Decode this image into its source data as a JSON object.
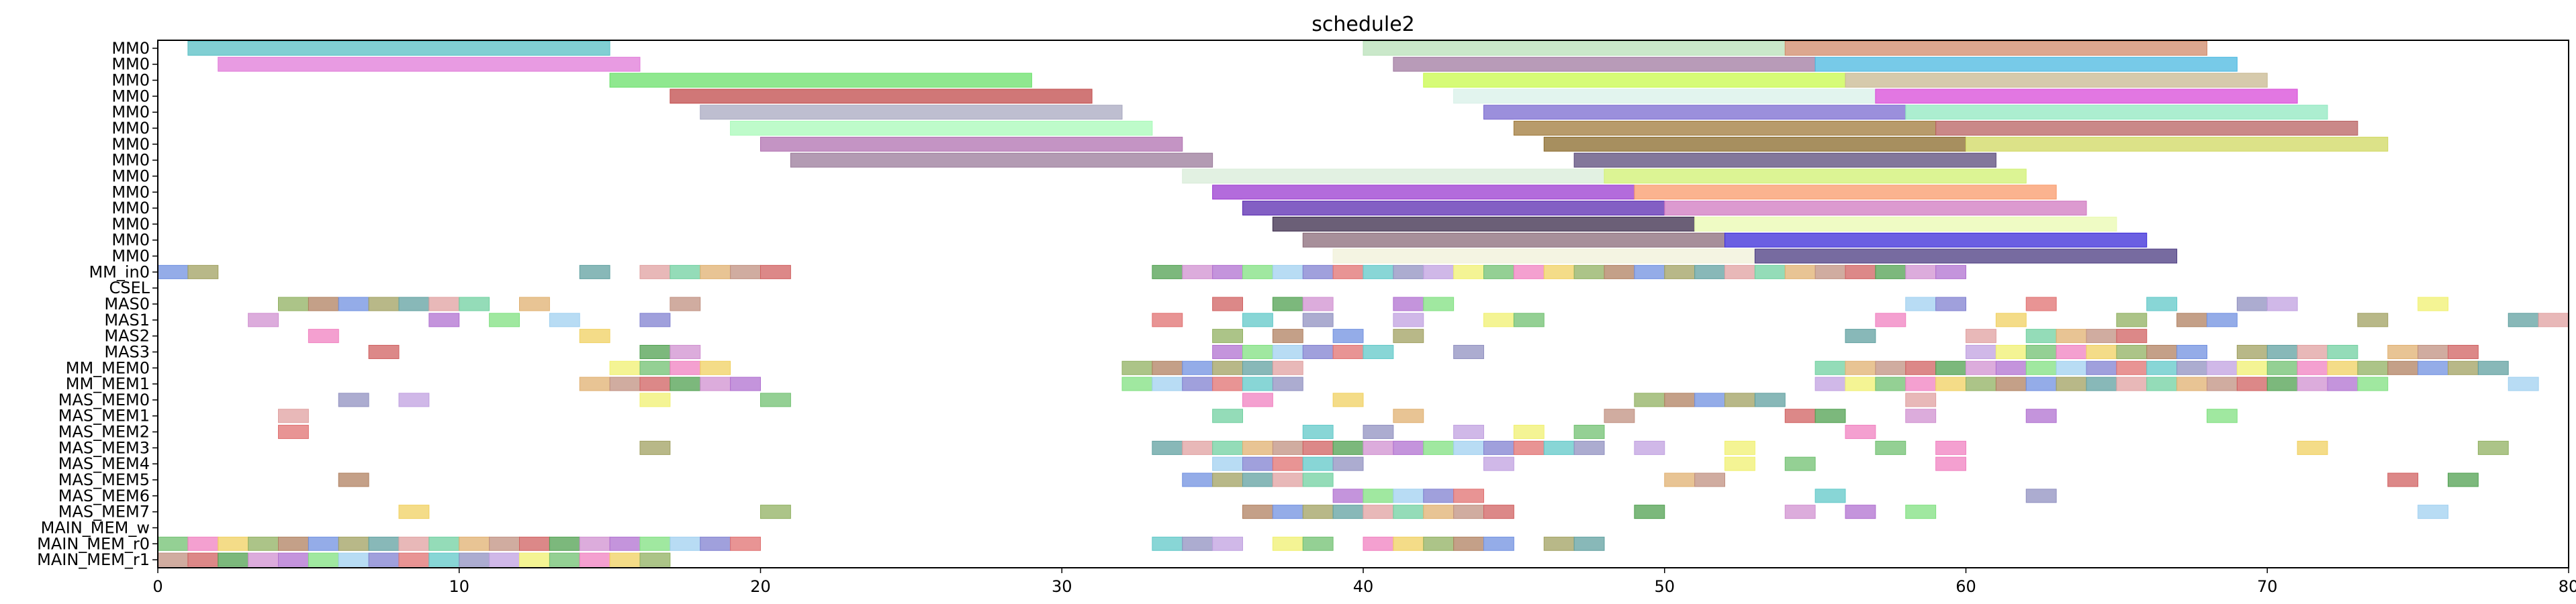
{
  "chart_data": {
    "type": "gantt",
    "title": "schedule2",
    "xlabel": "",
    "ylabel": "",
    "xlim": [
      0,
      80
    ],
    "xticks": [
      "0",
      "10",
      "20",
      "30",
      "40",
      "50",
      "60",
      "70",
      "80"
    ],
    "grid": false,
    "rows": [
      "MM0",
      "MM0",
      "MM0",
      "MM0",
      "MM0",
      "MM0",
      "MM0",
      "MM0",
      "MM0",
      "MM0",
      "MM0",
      "MM0",
      "MM0",
      "MM0",
      "MM_in0",
      "CSEL",
      "MAS0",
      "MAS1",
      "MAS2",
      "MAS3",
      "MM_MEM0",
      "MM_MEM1",
      "MAS_MEM0",
      "MAS_MEM1",
      "MAS_MEM2",
      "MAS_MEM3",
      "MAS_MEM4",
      "MAS_MEM5",
      "MAS_MEM6",
      "MAS_MEM7",
      "MAIN_MEM_w",
      "MAIN_MEM_r0",
      "MAIN_MEM_r1"
    ],
    "bars": [
      {
        "row": 0,
        "start": 1,
        "end": 15,
        "color": "#57bfc4"
      },
      {
        "row": 0,
        "start": 40,
        "end": 54,
        "color": "#b8e0b8"
      },
      {
        "row": 0,
        "start": 54,
        "end": 68,
        "color": "#d08a6a"
      },
      {
        "row": 1,
        "start": 2,
        "end": 16,
        "color": "#e07ad8"
      },
      {
        "row": 1,
        "start": 41,
        "end": 55,
        "color": "#a07aa0"
      },
      {
        "row": 1,
        "start": 55,
        "end": 69,
        "color": "#4ab8e0"
      },
      {
        "row": 2,
        "start": 15,
        "end": 29,
        "color": "#6ae06a"
      },
      {
        "row": 2,
        "start": 42,
        "end": 56,
        "color": "#c8fa4a"
      },
      {
        "row": 2,
        "start": 56,
        "end": 70,
        "color": "#c8b890"
      },
      {
        "row": 3,
        "start": 17,
        "end": 31,
        "color": "#c04a4a"
      },
      {
        "row": 3,
        "start": 43,
        "end": 57,
        "color": "#d8f0e8"
      },
      {
        "row": 3,
        "start": 57,
        "end": 71,
        "color": "#d84ad8"
      },
      {
        "row": 4,
        "start": 18,
        "end": 32,
        "color": "#a8a8c0"
      },
      {
        "row": 4,
        "start": 44,
        "end": 58,
        "color": "#7a6ad0"
      },
      {
        "row": 4,
        "start": 58,
        "end": 72,
        "color": "#90e8c0"
      },
      {
        "row": 5,
        "start": 19,
        "end": 33,
        "color": "#a8fab8"
      },
      {
        "row": 5,
        "start": 45,
        "end": 59,
        "color": "#a07a3a"
      },
      {
        "row": 5,
        "start": 59,
        "end": 73,
        "color": "#b86060"
      },
      {
        "row": 6,
        "start": 20,
        "end": 34,
        "color": "#b070b0"
      },
      {
        "row": 6,
        "start": 46,
        "end": 60,
        "color": "#8a6a2a"
      },
      {
        "row": 6,
        "start": 60,
        "end": 74,
        "color": "#d0d860"
      },
      {
        "row": 7,
        "start": 21,
        "end": 35,
        "color": "#9a7a9a"
      },
      {
        "row": 7,
        "start": 47,
        "end": 61,
        "color": "#5a4a7a"
      },
      {
        "row": 8,
        "start": 34,
        "end": 48,
        "color": "#d8ecd8"
      },
      {
        "row": 8,
        "start": 48,
        "end": 62,
        "color": "#d0f070"
      },
      {
        "row": 9,
        "start": 35,
        "end": 49,
        "color": "#9a3ad0"
      },
      {
        "row": 9,
        "start": 49,
        "end": 63,
        "color": "#fa9a6a"
      },
      {
        "row": 10,
        "start": 36,
        "end": 50,
        "color": "#5a2ab0"
      },
      {
        "row": 10,
        "start": 50,
        "end": 64,
        "color": "#d078c0"
      },
      {
        "row": 11,
        "start": 37,
        "end": 51,
        "color": "#3a2a4a"
      },
      {
        "row": 11,
        "start": 51,
        "end": 65,
        "color": "#eafab0"
      },
      {
        "row": 12,
        "start": 38,
        "end": 52,
        "color": "#8a6a78"
      },
      {
        "row": 12,
        "start": 52,
        "end": 66,
        "color": "#3a2ad8"
      },
      {
        "row": 13,
        "start": 39,
        "end": 53,
        "color": "#f0f0d8"
      },
      {
        "row": 13,
        "start": 53,
        "end": 67,
        "color": "#4a3a80"
      }
    ],
    "blocks": [
      {
        "row": 14,
        "x": [
          0,
          1,
          14,
          16,
          17,
          18,
          19,
          20,
          33,
          34,
          35,
          36,
          37,
          38,
          39,
          40,
          41,
          42,
          43,
          44,
          45,
          46,
          47,
          48,
          49,
          50,
          51,
          52,
          53,
          54,
          55,
          56,
          57,
          58,
          59
        ]
      },
      {
        "row": 16,
        "x": [
          4,
          5,
          6,
          7,
          8,
          9,
          10,
          12,
          17,
          35,
          37,
          38,
          41,
          42,
          58,
          59,
          62,
          66,
          69,
          70,
          75
        ]
      },
      {
        "row": 17,
        "x": [
          3,
          9,
          11,
          13,
          16,
          33,
          36,
          38,
          41,
          44,
          45,
          57,
          61,
          65,
          67,
          68,
          73,
          78,
          79
        ]
      },
      {
        "row": 18,
        "x": [
          5,
          14,
          35,
          37,
          39,
          41,
          56,
          60,
          62,
          63,
          64,
          65
        ]
      },
      {
        "row": 19,
        "x": [
          7,
          16,
          17,
          35,
          36,
          37,
          38,
          39,
          40,
          43,
          60,
          61,
          62,
          63,
          64,
          65,
          66,
          67,
          69,
          70,
          71,
          72,
          74,
          75,
          76
        ]
      },
      {
        "row": 20,
        "x": [
          15,
          16,
          17,
          18,
          32,
          33,
          34,
          35,
          36,
          37,
          55,
          56,
          57,
          58,
          59,
          60,
          61,
          62,
          63,
          64,
          65,
          66,
          67,
          68,
          69,
          70,
          71,
          72,
          73,
          74,
          75,
          76,
          77
        ]
      },
      {
        "row": 21,
        "x": [
          14,
          15,
          16,
          17,
          18,
          19,
          32,
          33,
          34,
          35,
          36,
          37,
          55,
          56,
          57,
          58,
          59,
          60,
          61,
          62,
          63,
          64,
          65,
          66,
          67,
          68,
          69,
          70,
          71,
          72,
          73,
          78
        ]
      },
      {
        "row": 22,
        "x": [
          6,
          8,
          16,
          20,
          36,
          39,
          49,
          50,
          51,
          52,
          53,
          58
        ]
      },
      {
        "row": 23,
        "x": [
          4,
          35,
          41,
          48,
          54,
          55,
          58,
          62,
          68
        ]
      },
      {
        "row": 24,
        "x": [
          4,
          38,
          40,
          43,
          45,
          47,
          56
        ]
      },
      {
        "row": 25,
        "x": [
          16,
          33,
          34,
          35,
          36,
          37,
          38,
          39,
          40,
          41,
          42,
          43,
          44,
          45,
          46,
          47,
          49,
          52,
          57,
          59,
          71,
          77
        ]
      },
      {
        "row": 26,
        "x": [
          35,
          36,
          37,
          38,
          39,
          44,
          52,
          54,
          59
        ]
      },
      {
        "row": 27,
        "x": [
          6,
          34,
          35,
          36,
          37,
          38,
          50,
          51,
          74,
          76
        ]
      },
      {
        "row": 28,
        "x": [
          39,
          40,
          41,
          42,
          43,
          55,
          62
        ]
      },
      {
        "row": 29,
        "x": [
          8,
          20,
          36,
          37,
          38,
          39,
          40,
          41,
          42,
          43,
          44,
          49,
          54,
          56,
          58,
          75
        ]
      },
      {
        "row": 31,
        "x": [
          0,
          1,
          2,
          3,
          4,
          5,
          6,
          7,
          8,
          9,
          10,
          11,
          12,
          13,
          14,
          15,
          16,
          17,
          18,
          19,
          33,
          34,
          35,
          37,
          38,
          40,
          41,
          42,
          43,
          44,
          46,
          47
        ]
      },
      {
        "row": 32,
        "x": [
          0,
          1,
          2,
          3,
          4,
          5,
          6,
          7,
          8,
          9,
          10,
          11,
          12,
          13,
          14,
          15,
          16
        ]
      }
    ],
    "block_width": 1
  }
}
